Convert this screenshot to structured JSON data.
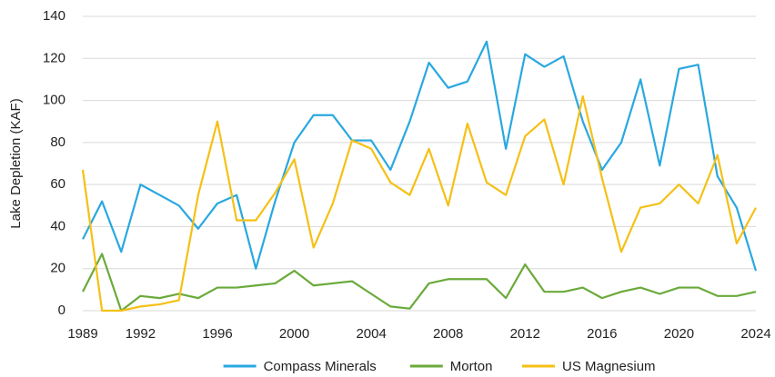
{
  "chart_data": {
    "type": "line",
    "y_label": "Lake Depletion (KAF)",
    "x": [
      1989,
      1990,
      1991,
      1992,
      1993,
      1994,
      1995,
      1996,
      1997,
      1998,
      1999,
      2000,
      2001,
      2002,
      2003,
      2004,
      2005,
      2006,
      2007,
      2008,
      2009,
      2010,
      2011,
      2012,
      2013,
      2014,
      2015,
      2016,
      2017,
      2018,
      2019,
      2020,
      2021,
      2022,
      2023,
      2024
    ],
    "series": [
      {
        "name": "Compass Minerals",
        "color": "#29a8e0",
        "values": [
          34,
          52,
          28,
          60,
          55,
          50,
          39,
          51,
          55,
          20,
          52,
          80,
          93,
          93,
          81,
          81,
          67,
          90,
          118,
          106,
          109,
          128,
          77,
          122,
          116,
          121,
          90,
          67,
          80,
          110,
          69,
          115,
          117,
          64,
          49,
          19
        ]
      },
      {
        "name": "Morton",
        "color": "#6aaa3a",
        "values": [
          9,
          27,
          0,
          7,
          6,
          8,
          6,
          11,
          11,
          12,
          13,
          19,
          12,
          13,
          14,
          8,
          2,
          1,
          13,
          15,
          15,
          15,
          6,
          22,
          9,
          9,
          11,
          6,
          9,
          11,
          8,
          11,
          11,
          7,
          7,
          9
        ]
      },
      {
        "name": "US Magnesium",
        "color": "#f5c016",
        "values": [
          67,
          0,
          0,
          2,
          3,
          5,
          55,
          90,
          43,
          43,
          56,
          72,
          30,
          51,
          81,
          77,
          61,
          55,
          77,
          50,
          89,
          61,
          55,
          83,
          91,
          60,
          102,
          63,
          28,
          49,
          51,
          60,
          51,
          74,
          32,
          49
        ]
      }
    ],
    "xlim": [
      1989,
      2024
    ],
    "xticks": [
      1989,
      1992,
      1996,
      2000,
      2004,
      2008,
      2012,
      2016,
      2020,
      2024
    ],
    "ylim": [
      0,
      140
    ],
    "yticks": [
      0,
      20,
      40,
      60,
      80,
      100,
      120,
      140
    ],
    "grid": true,
    "legend": "bottom"
  }
}
